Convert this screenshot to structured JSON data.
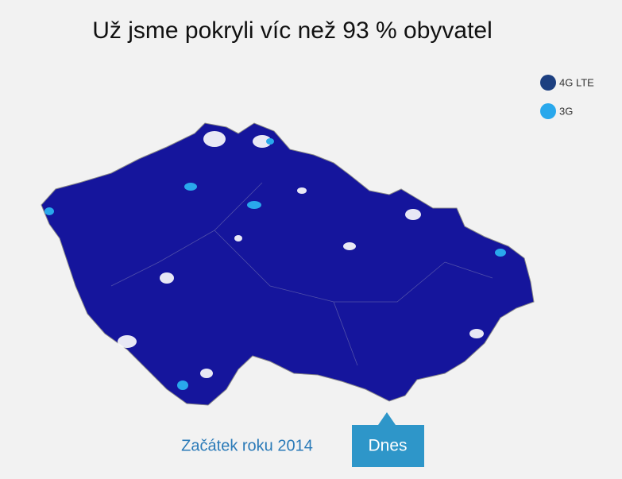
{
  "title": "Už jsme pokryli víc než 93 % obyvatel",
  "legend": [
    {
      "label": "4G LTE"
    },
    {
      "label": "3G"
    }
  ],
  "timeline": {
    "start": "Začátek roku 2014",
    "current": "Dnes"
  }
}
